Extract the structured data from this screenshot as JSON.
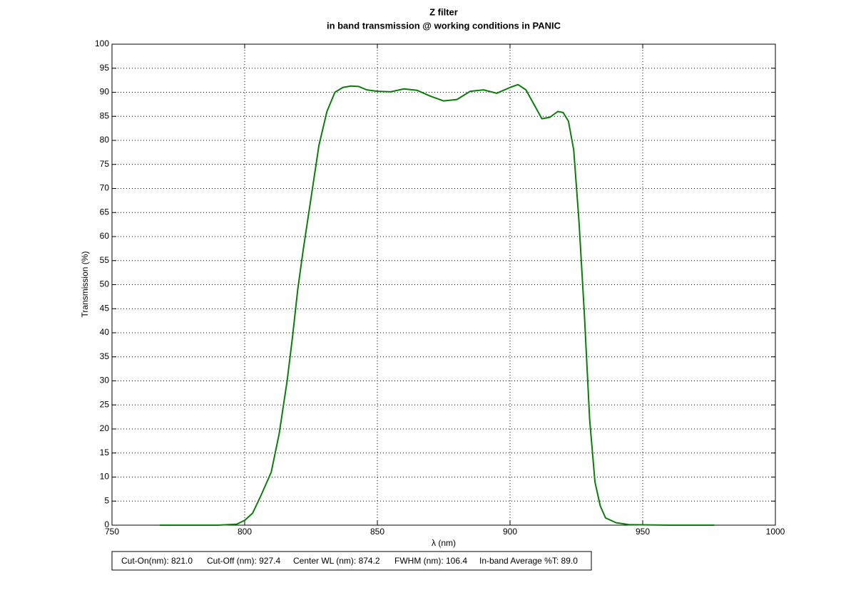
{
  "chart_data": {
    "type": "line",
    "title": "Z filter",
    "subtitle": "in band transmission @ working conditions in PANIC",
    "x_label": "λ (nm)",
    "y_label": "Transmission (%)",
    "x": [
      768,
      780,
      790,
      797,
      800,
      803,
      806,
      810,
      813,
      816,
      818,
      820,
      822,
      825,
      828,
      831,
      834,
      837,
      840,
      843,
      846,
      850,
      855,
      860,
      865,
      870,
      875,
      880,
      885,
      890,
      895,
      900,
      903,
      906,
      909,
      912,
      915,
      918,
      920,
      922,
      924,
      926,
      928,
      930,
      932,
      934,
      936,
      940,
      945,
      960,
      977
    ],
    "series": [
      {
        "name": "Transmission",
        "color": "#0a7d0a",
        "values": [
          0,
          0,
          0,
          0.2,
          1,
          2.5,
          6,
          11,
          19,
          30,
          39,
          49,
          57,
          68,
          79,
          86,
          90,
          91,
          91.3,
          91.2,
          90.5,
          90.2,
          90.1,
          90.7,
          90.4,
          89.2,
          88.2,
          88.5,
          90.2,
          90.5,
          89.8,
          91,
          91.6,
          90.5,
          87.5,
          84.5,
          84.8,
          86,
          85.8,
          84,
          78,
          63,
          44,
          22,
          9,
          4,
          1.5,
          0.5,
          0.1,
          0,
          0
        ]
      }
    ],
    "xlim": [
      750,
      1000
    ],
    "ylim": [
      0,
      100
    ],
    "xticks": [
      750,
      800,
      850,
      900,
      950,
      1000
    ],
    "yticks": [
      0,
      5,
      10,
      15,
      20,
      25,
      30,
      35,
      40,
      45,
      50,
      55,
      60,
      65,
      70,
      75,
      80,
      85,
      90,
      95,
      100
    ],
    "grid": true,
    "annotations": [
      "Cut-On(nm): 821.0",
      "Cut-Off (nm): 927.4",
      "Center WL (nm): 874.2",
      "FWHM (nm): 106.4",
      "In-band Average %T: 89.0"
    ]
  }
}
